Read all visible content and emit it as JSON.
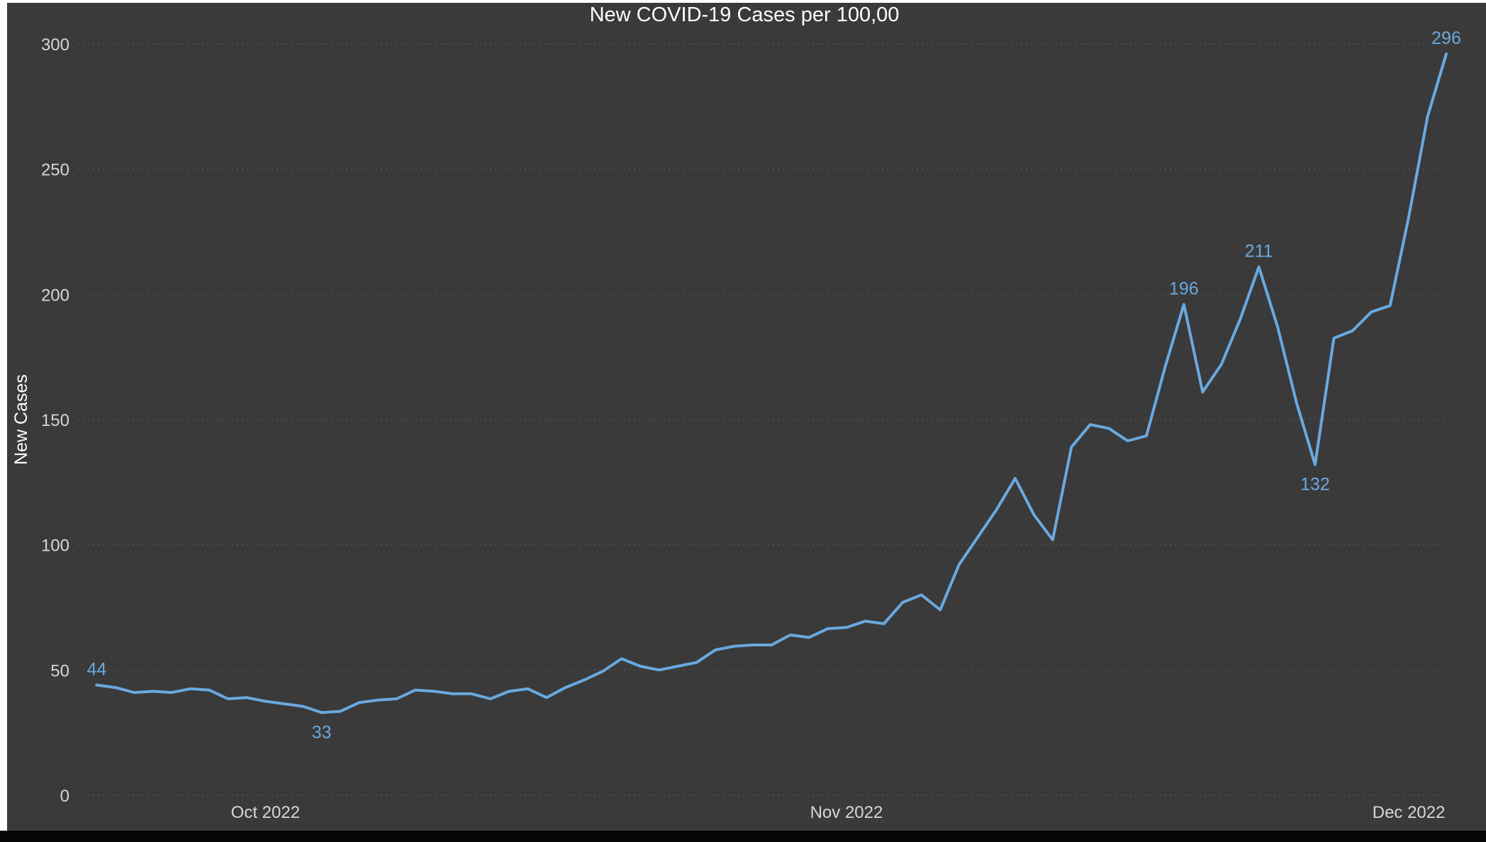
{
  "chart_data": {
    "type": "line",
    "title": "New COVID-19 Cases per 100,00",
    "xlabel": "",
    "ylabel": "New Cases",
    "ylim": [
      0,
      300
    ],
    "yticks": [
      0,
      50,
      100,
      150,
      200,
      250,
      300
    ],
    "xlim": [
      "2022-09-21",
      "2022-12-03"
    ],
    "xticks": [
      {
        "date": "2022-10-01",
        "label": "Oct 2022"
      },
      {
        "date": "2022-11-01",
        "label": "Nov 2022"
      },
      {
        "date": "2022-12-01",
        "label": "Dec 2022"
      }
    ],
    "grid": "horizontal dotted",
    "background": "#3a3a3a",
    "line_color": "#6aa9df",
    "series": [
      {
        "x": [
          "2022-09-22",
          "2022-09-23",
          "2022-09-24",
          "2022-09-25",
          "2022-09-26",
          "2022-09-27",
          "2022-09-28",
          "2022-09-29",
          "2022-09-30",
          "2022-10-01",
          "2022-10-02",
          "2022-10-03",
          "2022-10-04",
          "2022-10-05",
          "2022-10-06",
          "2022-10-07",
          "2022-10-08",
          "2022-10-09",
          "2022-10-10",
          "2022-10-11",
          "2022-10-12",
          "2022-10-13",
          "2022-10-14",
          "2022-10-15",
          "2022-10-16",
          "2022-10-17",
          "2022-10-18",
          "2022-10-19",
          "2022-10-20",
          "2022-10-21",
          "2022-10-22",
          "2022-10-23",
          "2022-10-24",
          "2022-10-25",
          "2022-10-26",
          "2022-10-27",
          "2022-10-28",
          "2022-10-29",
          "2022-10-30",
          "2022-10-31",
          "2022-11-01",
          "2022-11-02",
          "2022-11-03",
          "2022-11-04",
          "2022-11-05",
          "2022-11-06",
          "2022-11-07",
          "2022-11-08",
          "2022-11-09",
          "2022-11-10",
          "2022-11-11",
          "2022-11-12",
          "2022-11-13",
          "2022-11-14",
          "2022-11-15",
          "2022-11-16",
          "2022-11-17",
          "2022-11-18",
          "2022-11-19",
          "2022-11-20",
          "2022-11-21",
          "2022-11-22",
          "2022-11-23",
          "2022-11-24",
          "2022-11-25",
          "2022-11-26",
          "2022-11-27",
          "2022-11-28",
          "2022-11-29",
          "2022-11-30",
          "2022-12-01",
          "2022-12-02",
          "2022-12-03"
        ],
        "y": [
          44,
          43,
          41,
          41.5,
          41,
          42.5,
          42,
          38.5,
          39,
          37.5,
          36.5,
          35.5,
          33,
          33.5,
          37,
          38,
          38.5,
          42,
          41.5,
          40.5,
          40.5,
          38.5,
          41.5,
          42.5,
          39,
          43,
          46,
          49.5,
          54.5,
          51.5,
          50,
          51.5,
          53,
          58,
          59.5,
          60,
          60,
          64,
          63,
          66.5,
          67,
          69.5,
          68.5,
          77,
          80,
          74,
          92,
          103,
          114,
          126.5,
          112,
          102,
          139,
          148,
          146.5,
          141.5,
          143.5,
          171,
          196,
          161,
          172,
          190,
          211,
          187,
          157,
          132,
          182.5,
          185.5,
          193,
          195.5,
          231,
          271,
          296
        ]
      }
    ],
    "annotations": [
      {
        "x": "2022-09-22",
        "y": 44,
        "text": "44",
        "position": "above"
      },
      {
        "x": "2022-10-04",
        "y": 33,
        "text": "33",
        "position": "below"
      },
      {
        "x": "2022-11-19",
        "y": 196,
        "text": "196",
        "position": "above"
      },
      {
        "x": "2022-11-23",
        "y": 211,
        "text": "211",
        "position": "above"
      },
      {
        "x": "2022-11-26",
        "y": 132,
        "text": "132",
        "position": "below"
      },
      {
        "x": "2022-12-03",
        "y": 296,
        "text": "296",
        "position": "above"
      }
    ]
  }
}
